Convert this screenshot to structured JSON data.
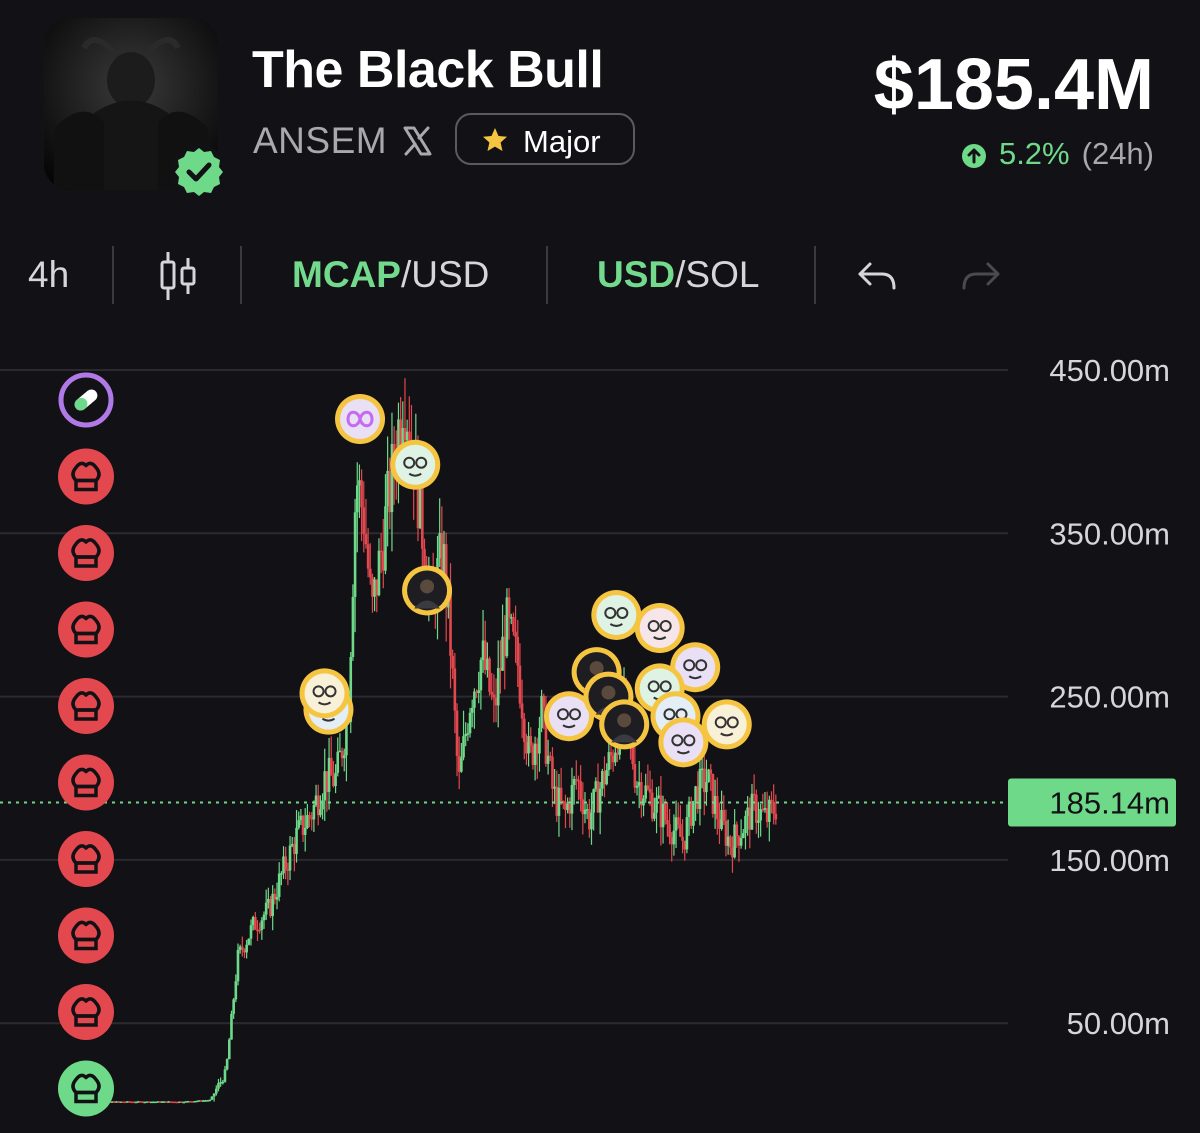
{
  "token": {
    "name": "The Black Bull",
    "ticker": "ANSEM",
    "badge": "Major",
    "verified": true,
    "avatar_icon": "black-bull-photo"
  },
  "market": {
    "market_cap": "$185.4M",
    "change_pct": "5.2%",
    "change_period": "(24h)",
    "direction": "up"
  },
  "toolbar": {
    "interval": "4h",
    "chart_style_icon": "candlestick-icon",
    "mcap_primary": "MCAP",
    "mcap_secondary": "/USD",
    "currency_primary": "USD",
    "currency_secondary": "/SOL",
    "undo_icon": "undo-icon",
    "redo_icon": "redo-icon"
  },
  "colors": {
    "background": "#121115",
    "up": "#6fd98a",
    "down": "#e2484e",
    "accent_green": "#73d98d",
    "badge_gold": "#f5c542",
    "marker_ring": "#f5c542",
    "pill_marker": "#b07ae6",
    "chef_red": "#e2484e",
    "chef_green": "#6fd98a"
  },
  "chart_data": {
    "type": "candlestick",
    "y_axis_labels": [
      "450.00m",
      "350.00m",
      "250.00m",
      "150.00m",
      "50.00m"
    ],
    "y_ticks": [
      450,
      350,
      250,
      150,
      50
    ],
    "ylim": [
      -3,
      460
    ],
    "current_value": 185.14,
    "current_label": "185.14m",
    "close_path": [
      [
        0,
        2
      ],
      [
        25,
        2
      ],
      [
        32,
        3
      ],
      [
        36,
        20
      ],
      [
        39,
        90
      ],
      [
        43,
        110
      ],
      [
        47,
        120
      ],
      [
        50,
        140
      ],
      [
        54,
        165
      ],
      [
        58,
        180
      ],
      [
        61,
        200
      ],
      [
        64,
        200
      ],
      [
        67,
        240
      ],
      [
        69,
        385
      ],
      [
        71,
        360
      ],
      [
        73,
        300
      ],
      [
        76,
        350
      ],
      [
        79,
        400
      ],
      [
        81,
        440
      ],
      [
        83,
        410
      ],
      [
        85,
        370
      ],
      [
        88,
        305
      ],
      [
        91,
        340
      ],
      [
        93,
        280
      ],
      [
        95,
        195
      ],
      [
        98,
        250
      ],
      [
        101,
        275
      ],
      [
        104,
        240
      ],
      [
        107,
        295
      ],
      [
        110,
        270
      ],
      [
        113,
        210
      ],
      [
        116,
        240
      ],
      [
        119,
        190
      ],
      [
        122,
        178
      ],
      [
        125,
        200
      ],
      [
        128,
        175
      ],
      [
        131,
        195
      ],
      [
        134,
        215
      ],
      [
        137,
        245
      ],
      [
        140,
        200
      ],
      [
        143,
        190
      ],
      [
        146,
        180
      ],
      [
        149,
        170
      ],
      [
        152,
        162
      ],
      [
        155,
        190
      ],
      [
        158,
        200
      ],
      [
        161,
        175
      ],
      [
        164,
        160
      ],
      [
        167,
        170
      ],
      [
        170,
        182
      ],
      [
        173,
        175
      ],
      [
        176,
        185
      ]
    ],
    "markers": [
      {
        "kind": "trader",
        "icon": "infinity-avatar-icon",
        "x": 70,
        "y": 420
      },
      {
        "kind": "trader",
        "icon": "cartoon-glasses-avatar-icon",
        "x": 84,
        "y": 392
      },
      {
        "kind": "trader",
        "icon": "devil-photo-avatar-icon",
        "x": 87,
        "y": 315
      },
      {
        "kind": "trader",
        "icon": "cartoon-bowtie-avatar-icon",
        "x": 62,
        "y": 242
      },
      {
        "kind": "trader",
        "icon": "cartoon-avatar-icon",
        "x": 61,
        "y": 252
      },
      {
        "kind": "trader",
        "icon": "cartoon-glasses-avatar-icon",
        "x": 123,
        "y": 238
      },
      {
        "kind": "trader",
        "icon": "cartoon-goggles-avatar-icon",
        "x": 135,
        "y": 300
      },
      {
        "kind": "trader",
        "icon": "cartoon-glasses-avatar-icon",
        "x": 146,
        "y": 292
      },
      {
        "kind": "trader",
        "icon": "photo-avatar-icon",
        "x": 130,
        "y": 265
      },
      {
        "kind": "trader",
        "icon": "dark-photo-avatar-icon",
        "x": 133,
        "y": 250
      },
      {
        "kind": "trader",
        "icon": "pink-monster-avatar-icon",
        "x": 155,
        "y": 268
      },
      {
        "kind": "trader",
        "icon": "cartoon-avatar-icon",
        "x": 146,
        "y": 255
      },
      {
        "kind": "trader",
        "icon": "dark-photo-avatar-icon",
        "x": 137,
        "y": 233
      },
      {
        "kind": "trader",
        "icon": "cartoon-cap-avatar-icon",
        "x": 150,
        "y": 238
      },
      {
        "kind": "trader",
        "icon": "cartoon-graduate-avatar-icon",
        "x": 163,
        "y": 233
      },
      {
        "kind": "trader",
        "icon": "cartoon-yellow-avatar-icon",
        "x": 152,
        "y": 222
      }
    ],
    "side_markers": [
      {
        "icon": "pill-icon",
        "color": "purple"
      },
      {
        "icon": "chef-hat-icon",
        "color": "red"
      },
      {
        "icon": "chef-hat-icon",
        "color": "red"
      },
      {
        "icon": "chef-hat-icon",
        "color": "red"
      },
      {
        "icon": "chef-hat-icon",
        "color": "red"
      },
      {
        "icon": "chef-hat-icon",
        "color": "red"
      },
      {
        "icon": "chef-hat-icon",
        "color": "red"
      },
      {
        "icon": "chef-hat-icon",
        "color": "red"
      },
      {
        "icon": "chef-hat-icon",
        "color": "red"
      },
      {
        "icon": "chef-hat-icon",
        "color": "green"
      }
    ]
  }
}
